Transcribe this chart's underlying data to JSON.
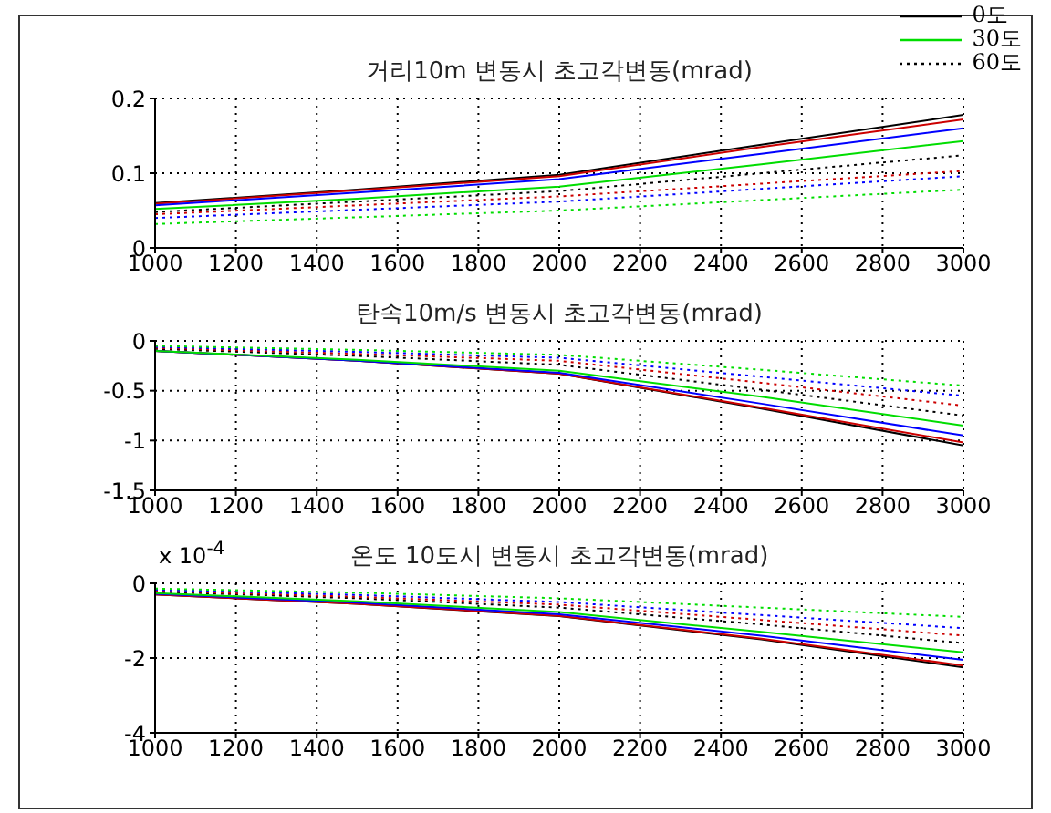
{
  "chart_data": [
    {
      "type": "line",
      "title": "거리10m 변동시 초고각변동(mrad)",
      "x": [
        1000,
        1500,
        2000,
        2500,
        3000
      ],
      "xlim": [
        1000,
        3000
      ],
      "xticks": [
        1000,
        1200,
        1400,
        1600,
        1800,
        2000,
        2200,
        2400,
        2600,
        2800,
        3000
      ],
      "ylim": [
        0,
        0.2
      ],
      "yticks": [
        0,
        0.1,
        0.2
      ],
      "grid": true,
      "legend": "top right",
      "series": [
        {
          "name": "0도",
          "color": "#000000",
          "line_style": "solid",
          "values": [
            0.06,
            0.078,
            0.098,
            0.138,
            0.178
          ]
        },
        {
          "color": "#cc0000",
          "line_style": "solid",
          "values": [
            0.059,
            0.077,
            0.096,
            0.135,
            0.172
          ]
        },
        {
          "color": "#0000ff",
          "line_style": "solid",
          "values": [
            0.057,
            0.074,
            0.092,
            0.126,
            0.16
          ]
        },
        {
          "name": "30도",
          "color": "#00dd00",
          "line_style": "solid",
          "values": [
            0.052,
            0.066,
            0.082,
            0.112,
            0.143
          ]
        },
        {
          "name": "60도",
          "color": "#000000",
          "line_style": "dotted",
          "values": [
            0.048,
            0.062,
            0.076,
            0.1,
            0.124
          ]
        },
        {
          "color": "#cc0000",
          "line_style": "dotted",
          "values": [
            0.045,
            0.057,
            0.069,
            0.086,
            0.103
          ]
        },
        {
          "color": "#0000ff",
          "line_style": "dotted",
          "values": [
            0.04,
            0.051,
            0.062,
            0.079,
            0.096
          ]
        },
        {
          "color": "#00dd00",
          "line_style": "dotted",
          "values": [
            0.032,
            0.041,
            0.05,
            0.064,
            0.078
          ]
        }
      ]
    },
    {
      "type": "line",
      "title": "탄속10m/s 변동시 초고각변동(mrad)",
      "x": [
        1000,
        1500,
        2000,
        2500,
        3000
      ],
      "xlim": [
        1000,
        3000
      ],
      "xticks": [
        1000,
        1200,
        1400,
        1600,
        1800,
        2000,
        2200,
        2400,
        2600,
        2800,
        3000
      ],
      "ylim": [
        -1.5,
        0
      ],
      "yticks": [
        -1.5,
        -1,
        -0.5,
        0
      ],
      "grid": true,
      "series": [
        {
          "color": "#000000",
          "line_style": "solid",
          "values": [
            -0.1,
            -0.2,
            -0.33,
            -0.68,
            -1.05
          ]
        },
        {
          "color": "#cc0000",
          "line_style": "solid",
          "values": [
            -0.1,
            -0.2,
            -0.33,
            -0.67,
            -1.02
          ]
        },
        {
          "color": "#0000ff",
          "line_style": "solid",
          "values": [
            -0.1,
            -0.2,
            -0.32,
            -0.63,
            -0.95
          ]
        },
        {
          "color": "#00dd00",
          "line_style": "solid",
          "values": [
            -0.1,
            -0.19,
            -0.3,
            -0.56,
            -0.85
          ]
        },
        {
          "color": "#000000",
          "line_style": "dotted",
          "values": [
            -0.08,
            -0.15,
            -0.24,
            -0.49,
            -0.75
          ]
        },
        {
          "color": "#cc0000",
          "line_style": "dotted",
          "values": [
            -0.07,
            -0.13,
            -0.2,
            -0.42,
            -0.65
          ]
        },
        {
          "color": "#0000ff",
          "line_style": "dotted",
          "values": [
            -0.06,
            -0.11,
            -0.17,
            -0.36,
            -0.55
          ]
        },
        {
          "color": "#00dd00",
          "line_style": "dotted",
          "values": [
            -0.05,
            -0.09,
            -0.14,
            -0.29,
            -0.45
          ]
        }
      ]
    },
    {
      "type": "line",
      "title": "온도 10도시 변동시 초고각변동(mrad)",
      "annotations": [
        "x 10$^{-4}$"
      ],
      "x": [
        1000,
        1500,
        2000,
        2500,
        3000
      ],
      "xlim": [
        1000,
        3000
      ],
      "xticks": [
        1000,
        1200,
        1400,
        1600,
        1800,
        2000,
        2200,
        2400,
        2600,
        2800,
        3000
      ],
      "ylim": [
        -4,
        0
      ],
      "yticks": [
        -4,
        -2,
        0
      ],
      "grid": true,
      "series": [
        {
          "color": "#000000",
          "line_style": "solid",
          "values": [
            -0.3,
            -0.55,
            -0.88,
            -1.5,
            -2.25
          ]
        },
        {
          "color": "#cc0000",
          "line_style": "solid",
          "values": [
            -0.3,
            -0.55,
            -0.87,
            -1.48,
            -2.2
          ]
        },
        {
          "color": "#0000ff",
          "line_style": "solid",
          "values": [
            -0.28,
            -0.52,
            -0.83,
            -1.4,
            -2.05
          ]
        },
        {
          "color": "#00dd00",
          "line_style": "solid",
          "values": [
            -0.26,
            -0.48,
            -0.77,
            -1.3,
            -1.85
          ]
        },
        {
          "color": "#000000",
          "line_style": "dotted",
          "values": [
            -0.22,
            -0.4,
            -0.65,
            -1.1,
            -1.6
          ]
        },
        {
          "color": "#cc0000",
          "line_style": "dotted",
          "values": [
            -0.2,
            -0.36,
            -0.57,
            -0.98,
            -1.4
          ]
        },
        {
          "color": "#0000ff",
          "line_style": "dotted",
          "values": [
            -0.17,
            -0.31,
            -0.5,
            -0.85,
            -1.2
          ]
        },
        {
          "color": "#00dd00",
          "line_style": "dotted",
          "values": [
            -0.14,
            -0.25,
            -0.4,
            -0.65,
            -0.9
          ]
        }
      ]
    }
  ]
}
